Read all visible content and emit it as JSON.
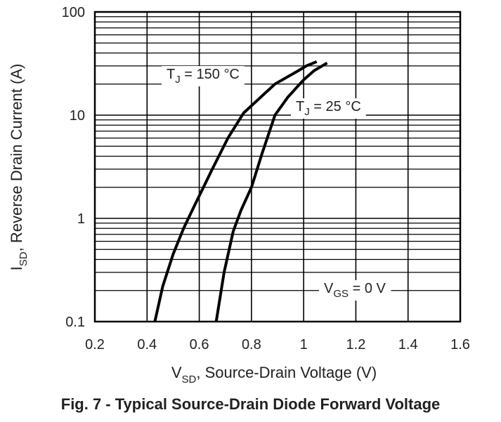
{
  "chart_data": {
    "type": "line",
    "title": "Fig. 7 - Typical Source-Drain Diode Forward Voltage",
    "xlabel": {
      "main": "V",
      "sub": "SD",
      "rest": ", Source-Drain Voltage (V)"
    },
    "ylabel": {
      "main": "I",
      "sub": "SD",
      "rest": ", Reverse Drain Current (A)"
    },
    "xscale": "linear",
    "yscale": "log",
    "xlim": [
      0.2,
      1.6
    ],
    "ylim": [
      0.1,
      100
    ],
    "x_ticks": [
      0.2,
      0.4,
      0.6,
      0.8,
      1.0,
      1.2,
      1.4,
      1.6
    ],
    "x_tick_labels": [
      "0.2",
      "0.4",
      "0.6",
      "0.8",
      "1",
      "1.2",
      "1.4",
      "1.6"
    ],
    "y_ticks": [
      0.1,
      1,
      10,
      100
    ],
    "y_tick_labels": [
      "0.1",
      "1",
      "10",
      "100"
    ],
    "grid": true,
    "series": [
      {
        "name": "TJ = 150 °C",
        "label": {
          "main": "T",
          "sub": "J",
          "rest": " = 150 °C"
        },
        "x": [
          0.43,
          0.46,
          0.5,
          0.54,
          0.58,
          0.65,
          0.71,
          0.77,
          0.89,
          0.98,
          1.01,
          1.05
        ],
        "y": [
          0.1,
          0.22,
          0.45,
          0.8,
          1.3,
          3.0,
          6.0,
          10.5,
          20.0,
          27.0,
          30.0,
          33.0
        ]
      },
      {
        "name": "TJ = 25 °C",
        "label": {
          "main": "T",
          "sub": "J",
          "rest": " = 25 °C"
        },
        "x": [
          0.665,
          0.695,
          0.73,
          0.76,
          0.8,
          0.84,
          0.89,
          0.94,
          1.0,
          1.04,
          1.09
        ],
        "y": [
          0.1,
          0.3,
          0.75,
          1.2,
          2.0,
          4.2,
          10.0,
          15.0,
          22.0,
          27.0,
          32.0
        ]
      }
    ],
    "annotation": {
      "main": "V",
      "sub": "GS",
      "rest": " = 0 V"
    }
  }
}
